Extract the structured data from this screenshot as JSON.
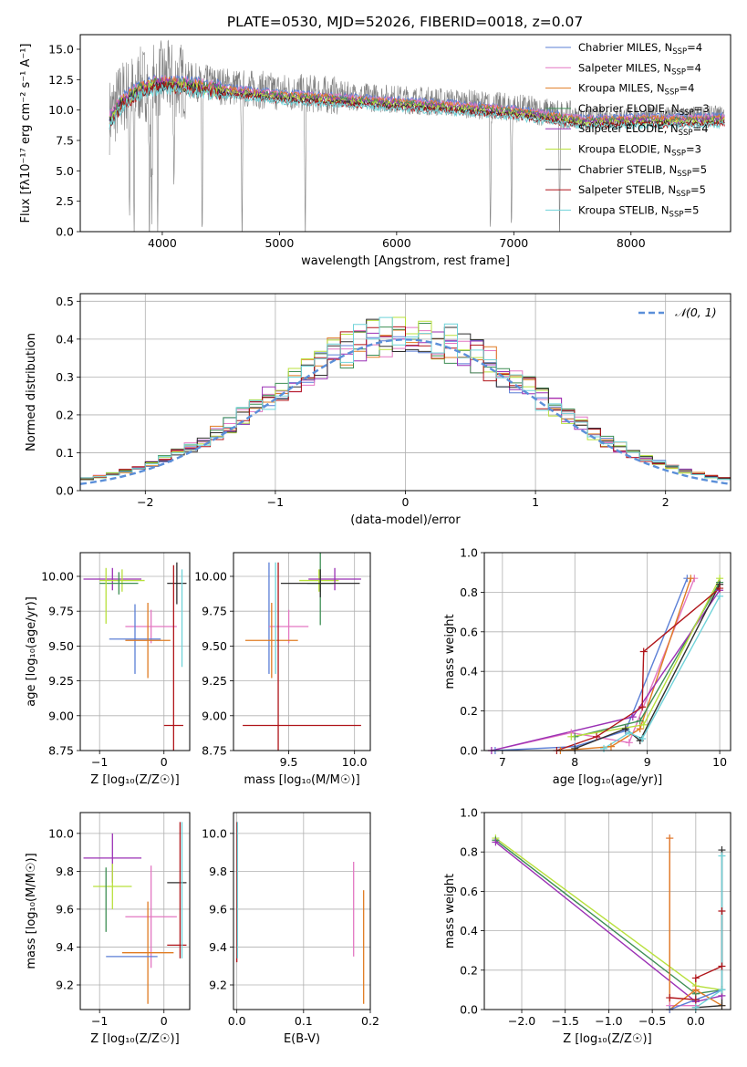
{
  "figure_title": "PLATE=0530, MJD=52026, FIBERID=0018, z=0.07",
  "series_colors": {
    "chabrier_miles": "#5b7fd6",
    "salpeter_miles": "#e377c2",
    "kroupa_miles": "#e07b22",
    "chabrier_elodie": "#3e8e54",
    "salpeter_elodie": "#9b31b5",
    "kroupa_elodie": "#b8e03c",
    "chabrier_stelib": "#2e2e2e",
    "salpeter_stelib": "#b0151a",
    "kroupa_stelib": "#6fd3d9",
    "data_gray": "#808080",
    "normal_dashed": "#5b8fd9"
  },
  "legend": {
    "entries": [
      {
        "key": "chabrier_miles",
        "prefix": "Chabrier MILES, N",
        "sub": "SSP",
        "suffix": "=4"
      },
      {
        "key": "salpeter_miles",
        "prefix": "Salpeter MILES, N",
        "sub": "SSP",
        "suffix": "=4"
      },
      {
        "key": "kroupa_miles",
        "prefix": "Kroupa MILES, N",
        "sub": "SSP",
        "suffix": "=4"
      },
      {
        "key": "chabrier_elodie",
        "prefix": "Chabrier ELODIE, N",
        "sub": "SSP",
        "suffix": "=3"
      },
      {
        "key": "salpeter_elodie",
        "prefix": "Salpeter ELODIE, N",
        "sub": "SSP",
        "suffix": "=4"
      },
      {
        "key": "kroupa_elodie",
        "prefix": "Kroupa ELODIE, N",
        "sub": "SSP",
        "suffix": "=3"
      },
      {
        "key": "chabrier_stelib",
        "prefix": "Chabrier STELIB, N",
        "sub": "SSP",
        "suffix": "=5"
      },
      {
        "key": "salpeter_stelib",
        "prefix": "Salpeter STELIB, N",
        "sub": "SSP",
        "suffix": "=5"
      },
      {
        "key": "kroupa_stelib",
        "prefix": "Kroupa STELIB, N",
        "sub": "SSP",
        "suffix": "=5"
      }
    ]
  },
  "chart_data": [
    {
      "id": "spectrum",
      "type": "line",
      "title": "PLATE=0530, MJD=52026, FIBERID=0018, z=0.07",
      "xlabel": "wavelength [Angstrom, rest frame]",
      "ylabel": "Flux [fλ10⁻¹⁷ erg cm⁻² s⁻¹ A⁻¹]",
      "xlim": [
        3300,
        8850
      ],
      "ylim": [
        0,
        16.2
      ],
      "xticks": [
        4000,
        5000,
        6000,
        7000,
        8000
      ],
      "yticks": [
        0.0,
        2.5,
        5.0,
        7.5,
        10.0,
        12.5,
        15.0
      ],
      "grid": false,
      "legend_position": "top-right",
      "continuum": {
        "x": [
          3550,
          3650,
          3800,
          4000,
          4200,
          4500,
          5000,
          5500,
          6000,
          6500,
          7000,
          7300,
          7600,
          8000,
          8500,
          8800
        ],
        "y": [
          9.5,
          11.0,
          12.0,
          12.6,
          12.4,
          12.0,
          11.5,
          11.2,
          10.9,
          10.6,
          10.2,
          9.8,
          9.4,
          9.5,
          9.5,
          9.6
        ]
      },
      "absorption_features": [
        {
          "x": 3720,
          "depth": 9.0
        },
        {
          "x": 3760,
          "depth": 12.0
        },
        {
          "x": 3890,
          "depth": 12.0
        },
        {
          "x": 3910,
          "depth": 12.6
        },
        {
          "x": 3960,
          "depth": 10.0
        },
        {
          "x": 4100,
          "depth": 9.0
        },
        {
          "x": 4340,
          "depth": 12.4
        },
        {
          "x": 4680,
          "depth": 11.9
        },
        {
          "x": 5220,
          "depth": 11.4
        },
        {
          "x": 6800,
          "depth": 10.3
        },
        {
          "x": 6980,
          "depth": 10.2
        },
        {
          "x": 7390,
          "depth": 9.7
        }
      ]
    },
    {
      "id": "residuals",
      "type": "step",
      "xlabel": "(data-model)/error",
      "ylabel": "Normed distribution",
      "xlim": [
        -2.5,
        2.5
      ],
      "ylim": [
        0,
        0.52
      ],
      "xticks": [
        -2,
        -1,
        0,
        1,
        2
      ],
      "yticks": [
        0.0,
        0.1,
        0.2,
        0.3,
        0.4,
        0.5
      ],
      "grid": true,
      "legend_position": "top-right",
      "reference": {
        "name": "𝒩(0, 1)",
        "mu": 0,
        "sigma": 1
      },
      "bins": {
        "start": -2.5,
        "width": 0.1,
        "count": 50
      }
    },
    {
      "id": "age_vs_Z",
      "type": "errorbar",
      "xlabel": "Z [log₁₀(Z/Z☉)]",
      "ylabel": "age  [log₁₀(age/yr)]",
      "xlim": [
        -1.3,
        0.4
      ],
      "ylim": [
        8.75,
        10.17
      ],
      "xticks": [
        -1,
        0
      ],
      "yticks": [
        8.75,
        9.0,
        9.25,
        9.5,
        9.75,
        10.0
      ],
      "grid": true,
      "points": [
        {
          "series": "salpeter_elodie",
          "x": -0.8,
          "xerr": 0.45,
          "y": 9.98,
          "yerr": 0.08
        },
        {
          "series": "kroupa_elodie",
          "x": -0.65,
          "xerr": 0.35,
          "y": 9.97,
          "yerr": 0.08
        },
        {
          "series": "chabrier_elodie",
          "x": -0.7,
          "xerr": 0.3,
          "y": 9.95,
          "yerr": 0.08
        },
        {
          "series": "kroupa_elodie",
          "x": -0.9,
          "xerr": 0.0,
          "y": 9.86,
          "yerr": 0.2
        },
        {
          "series": "salpeter_miles",
          "x": -0.2,
          "xerr": 0.4,
          "y": 9.64,
          "yerr": 0.12
        },
        {
          "series": "chabrier_miles",
          "x": -0.45,
          "xerr": 0.4,
          "y": 9.55,
          "yerr": 0.25
        },
        {
          "series": "kroupa_miles",
          "x": -0.25,
          "xerr": 0.35,
          "y": 9.54,
          "yerr": 0.27
        },
        {
          "series": "chabrier_stelib",
          "x": 0.2,
          "xerr": 0.15,
          "y": 9.95,
          "yerr": 0.15
        },
        {
          "series": "salpeter_stelib",
          "x": 0.15,
          "xerr": 0.15,
          "y": 8.93,
          "yerr": 1.15
        },
        {
          "series": "kroupa_stelib",
          "x": 0.28,
          "xerr": 0.0,
          "y": 9.7,
          "yerr": 0.35
        }
      ]
    },
    {
      "id": "age_vs_mass",
      "type": "errorbar",
      "xlabel": "mass [log₁₀(M/M☉)]",
      "ylabel": "",
      "xlim": [
        9.08,
        10.12
      ],
      "ylim": [
        8.75,
        10.17
      ],
      "xticks": [
        9.5,
        10.0
      ],
      "yticks": [
        8.75,
        9.0,
        9.25,
        9.5,
        9.75,
        10.0
      ],
      "grid": true,
      "points": [
        {
          "series": "chabrier_miles",
          "x": 9.35,
          "xerr": 0.0,
          "y": 9.7,
          "yerr": 0.4
        },
        {
          "series": "salpeter_miles",
          "x": 9.5,
          "xerr": 0.15,
          "y": 9.64,
          "yerr": 0.12
        },
        {
          "series": "kroupa_miles",
          "x": 9.37,
          "xerr": 0.2,
          "y": 9.54,
          "yerr": 0.27
        },
        {
          "series": "kroupa_elodie",
          "x": 9.73,
          "xerr": 0.15,
          "y": 9.97,
          "yerr": 0.08
        },
        {
          "series": "chabrier_elodie",
          "x": 9.74,
          "xerr": 0.1,
          "y": 9.95,
          "yerr": 0.3
        },
        {
          "series": "salpeter_elodie",
          "x": 9.85,
          "xerr": 0.2,
          "y": 9.98,
          "yerr": 0.08
        },
        {
          "series": "chabrier_stelib",
          "x": 9.74,
          "xerr": 0.3,
          "y": 9.95,
          "yerr": 0.1
        },
        {
          "series": "salpeter_stelib",
          "x": 9.42,
          "xerr": 0.0,
          "y": 9.4,
          "yerr": 0.7
        },
        {
          "series": "salpeter_stelib",
          "x": 9.6,
          "xerr": 0.45,
          "y": 8.93,
          "yerr": 0.0
        },
        {
          "series": "kroupa_stelib",
          "x": 9.4,
          "xerr": 0.0,
          "y": 9.7,
          "yerr": 0.4
        }
      ]
    },
    {
      "id": "weight_vs_age",
      "type": "line",
      "xlabel": "age  [log₁₀(age/yr)]",
      "ylabel": "mass weight",
      "xlim": [
        6.75,
        10.15
      ],
      "ylim": [
        0,
        1.0
      ],
      "xticks": [
        7,
        8,
        9,
        10
      ],
      "yticks": [
        0.0,
        0.2,
        0.4,
        0.6,
        0.8,
        1.0
      ],
      "grid": true,
      "series": [
        {
          "key": "chabrier_miles",
          "x": [
            6.9,
            8.0,
            8.7,
            9.55
          ],
          "y": [
            0.0,
            0.02,
            0.1,
            0.87
          ]
        },
        {
          "key": "salpeter_miles",
          "x": [
            6.85,
            7.95,
            8.75,
            9.65
          ],
          "y": [
            0.0,
            0.09,
            0.04,
            0.87
          ]
        },
        {
          "key": "kroupa_miles",
          "x": [
            7.8,
            8.5,
            8.9,
            9.6
          ],
          "y": [
            0.0,
            0.02,
            0.11,
            0.87
          ]
        },
        {
          "key": "chabrier_elodie",
          "x": [
            8.0,
            8.9,
            10.0
          ],
          "y": [
            0.07,
            0.15,
            0.85
          ]
        },
        {
          "key": "salpeter_elodie",
          "x": [
            6.85,
            8.8,
            10.0
          ],
          "y": [
            0.0,
            0.17,
            0.81
          ]
        },
        {
          "key": "kroupa_elodie",
          "x": [
            7.95,
            8.95,
            10.0
          ],
          "y": [
            0.07,
            0.13,
            0.87
          ]
        },
        {
          "key": "chabrier_stelib",
          "x": [
            8.0,
            8.7,
            8.9,
            10.0
          ],
          "y": [
            0.01,
            0.11,
            0.05,
            0.84
          ]
        },
        {
          "key": "salpeter_stelib",
          "x": [
            7.75,
            8.3,
            8.93,
            8.95,
            10.0
          ],
          "y": [
            0.0,
            0.07,
            0.22,
            0.5,
            0.82
          ]
        },
        {
          "key": "kroupa_stelib",
          "x": [
            8.4,
            8.75,
            8.93,
            10.0
          ],
          "y": [
            0.01,
            0.09,
            0.06,
            0.78
          ]
        }
      ]
    },
    {
      "id": "mass_vs_Z",
      "type": "errorbar",
      "xlabel": "Z [log₁₀(Z/Z☉)]",
      "ylabel": "mass [log₁₀(M/M☉)]",
      "xlim": [
        -1.3,
        0.4
      ],
      "ylim": [
        9.07,
        10.11
      ],
      "xticks": [
        -1,
        0
      ],
      "yticks": [
        9.2,
        9.4,
        9.6,
        9.8,
        10.0
      ],
      "grid": true,
      "points": [
        {
          "series": "salpeter_elodie",
          "x": -0.8,
          "xerr": 0.45,
          "y": 9.87,
          "yerr": 0.13
        },
        {
          "series": "kroupa_elodie",
          "x": -0.8,
          "xerr": 0.3,
          "y": 9.72,
          "yerr": 0.12
        },
        {
          "series": "chabrier_elodie",
          "x": -0.9,
          "xerr": 0.0,
          "y": 9.65,
          "yerr": 0.17
        },
        {
          "series": "salpeter_miles",
          "x": -0.2,
          "xerr": 0.4,
          "y": 9.56,
          "yerr": 0.27
        },
        {
          "series": "kroupa_miles",
          "x": -0.25,
          "xerr": 0.4,
          "y": 9.37,
          "yerr": 0.27
        },
        {
          "series": "chabrier_miles",
          "x": -0.5,
          "xerr": 0.4,
          "y": 9.35,
          "yerr": 0.0
        },
        {
          "series": "chabrier_stelib",
          "x": 0.2,
          "xerr": 0.15,
          "y": 9.74,
          "yerr": 0.0
        },
        {
          "series": "salpeter_stelib",
          "x": 0.2,
          "xerr": 0.15,
          "y": 9.41,
          "yerr": 0.0
        },
        {
          "series": "salpeter_stelib",
          "x": 0.25,
          "xerr": 0.0,
          "y": 9.7,
          "yerr": 0.36
        },
        {
          "series": "kroupa_stelib",
          "x": 0.28,
          "xerr": 0.0,
          "y": 9.7,
          "yerr": 0.36
        }
      ]
    },
    {
      "id": "mass_vs_ebv",
      "type": "errorbar",
      "xlabel": "E(B-V)",
      "ylabel": "",
      "xlim": [
        -0.005,
        0.2
      ],
      "ylim": [
        9.07,
        10.11
      ],
      "xticks": [
        0.0,
        0.1,
        0.2
      ],
      "yticks": [
        9.2,
        9.4,
        9.6,
        9.8,
        10.0
      ],
      "grid": true,
      "points": [
        {
          "series": "salpeter_stelib",
          "x": 0.0,
          "xerr": 0.0,
          "y": 9.69,
          "yerr": 0.37
        },
        {
          "series": "kroupa_stelib",
          "x": 0.001,
          "xerr": 0.0,
          "y": 9.7,
          "yerr": 0.36
        },
        {
          "series": "salpeter_miles",
          "x": 0.175,
          "xerr": 0.0,
          "y": 9.6,
          "yerr": 0.25
        },
        {
          "series": "kroupa_miles",
          "x": 0.19,
          "xerr": 0.0,
          "y": 9.4,
          "yerr": 0.3
        }
      ]
    },
    {
      "id": "weight_vs_Z",
      "type": "line",
      "xlabel": "Z [log₁₀(Z/Z☉)]",
      "ylabel": "mass weight",
      "xlim": [
        -2.43,
        0.4
      ],
      "ylim": [
        0,
        1.0
      ],
      "xticks": [
        -2.0,
        -1.5,
        -1.0,
        -0.5,
        0.0
      ],
      "yticks": [
        0.0,
        0.2,
        0.4,
        0.6,
        0.8,
        1.0
      ],
      "grid": true,
      "series": [
        {
          "key": "kroupa_elodie",
          "x": [
            -2.3,
            0.0,
            0.3
          ],
          "y": [
            0.87,
            0.12,
            0.1
          ]
        },
        {
          "key": "chabrier_elodie",
          "x": [
            -2.3,
            0.0,
            0.3
          ],
          "y": [
            0.86,
            0.08,
            0.1
          ]
        },
        {
          "key": "salpeter_elodie",
          "x": [
            -2.3,
            0.0,
            0.3
          ],
          "y": [
            0.85,
            0.04,
            0.07
          ]
        },
        {
          "key": "salpeter_miles",
          "x": [
            -0.3,
            -0.3,
            0.0,
            0.0
          ],
          "y": [
            0.87,
            0.02,
            0.02,
            0.1
          ]
        },
        {
          "key": "kroupa_miles",
          "x": [
            -0.3,
            -0.3,
            0.0,
            0.3
          ],
          "y": [
            0.87,
            0.0,
            0.1,
            0.02
          ]
        },
        {
          "key": "chabrier_miles",
          "x": [
            -0.3,
            0.0,
            0.3
          ],
          "y": [
            0.0,
            0.05,
            0.1
          ]
        },
        {
          "key": "salpeter_stelib",
          "x": [
            -0.3,
            0.0,
            0.0,
            0.3,
            0.3
          ],
          "y": [
            0.06,
            0.05,
            0.16,
            0.22,
            0.5
          ]
        },
        {
          "key": "chabrier_stelib",
          "x": [
            0.0,
            0.3,
            0.3
          ],
          "y": [
            0.01,
            0.02,
            0.81
          ]
        },
        {
          "key": "kroupa_stelib",
          "x": [
            0.0,
            0.3,
            0.3
          ],
          "y": [
            0.01,
            0.1,
            0.78
          ]
        }
      ]
    }
  ]
}
